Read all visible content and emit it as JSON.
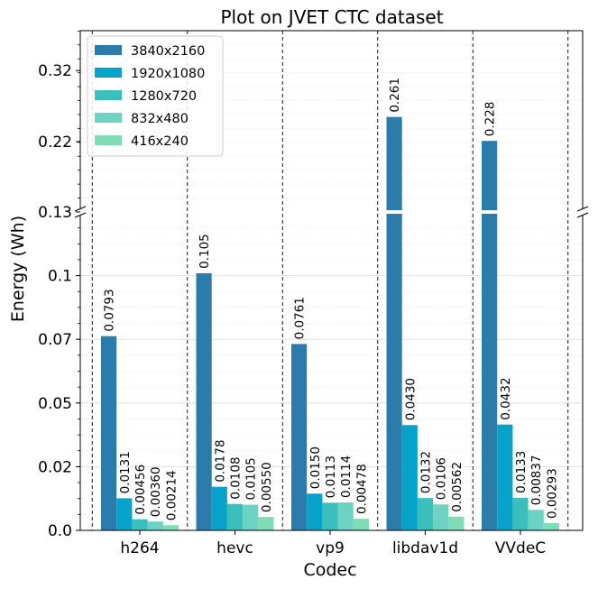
{
  "chart_data": {
    "type": "bar",
    "title": "Plot on JVET CTC dataset",
    "xlabel": "Codec",
    "ylabel": "Energy (Wh)",
    "categories": [
      "h264",
      "hevc",
      "vp9",
      "libdav1d",
      "VVdeC"
    ],
    "series": [
      {
        "name": "3840x2160",
        "color": "#2b7bab",
        "values": [
          0.0793,
          0.105,
          0.0761,
          0.261,
          0.228
        ],
        "labels": [
          "0.0793",
          "0.105",
          "0.0761",
          "0.261",
          "0.228"
        ]
      },
      {
        "name": "1920x1080",
        "color": "#07a2c9",
        "values": [
          0.0131,
          0.0178,
          0.015,
          0.043,
          0.0432
        ],
        "labels": [
          "0.0131",
          "0.0178",
          "0.0150",
          "0.0430",
          "0.0432"
        ]
      },
      {
        "name": "1280x720",
        "color": "#3bbfbd",
        "values": [
          0.00456,
          0.0108,
          0.0113,
          0.0132,
          0.0133
        ],
        "labels": [
          "0.00456",
          "0.0108",
          "0.0113",
          "0.0132",
          "0.0133"
        ]
      },
      {
        "name": "832x480",
        "color": "#6cd3c3",
        "values": [
          0.0036,
          0.0105,
          0.0114,
          0.0106,
          0.00837
        ],
        "labels": [
          "0.00360",
          "0.0105",
          "0.0114",
          "0.0106",
          "0.00837"
        ]
      },
      {
        "name": "416x240",
        "color": "#7fddb5",
        "values": [
          0.00214,
          0.0055,
          0.00478,
          0.00562,
          0.00293
        ],
        "labels": [
          "0.00214",
          "0.00550",
          "0.00478",
          "0.00562",
          "0.00293"
        ]
      }
    ],
    "broken_y_axis": true,
    "ylim_lower": [
      0,
      0.13
    ],
    "ylim_upper": [
      0.13,
      0.38
    ],
    "yticks_lower": [
      "0.0",
      "0.02",
      "0.05",
      "0.07",
      "0.1"
    ],
    "yticks_upper": [
      "0.13",
      "0.22",
      "0.32"
    ],
    "grid": true,
    "legend_position": "top-left"
  }
}
